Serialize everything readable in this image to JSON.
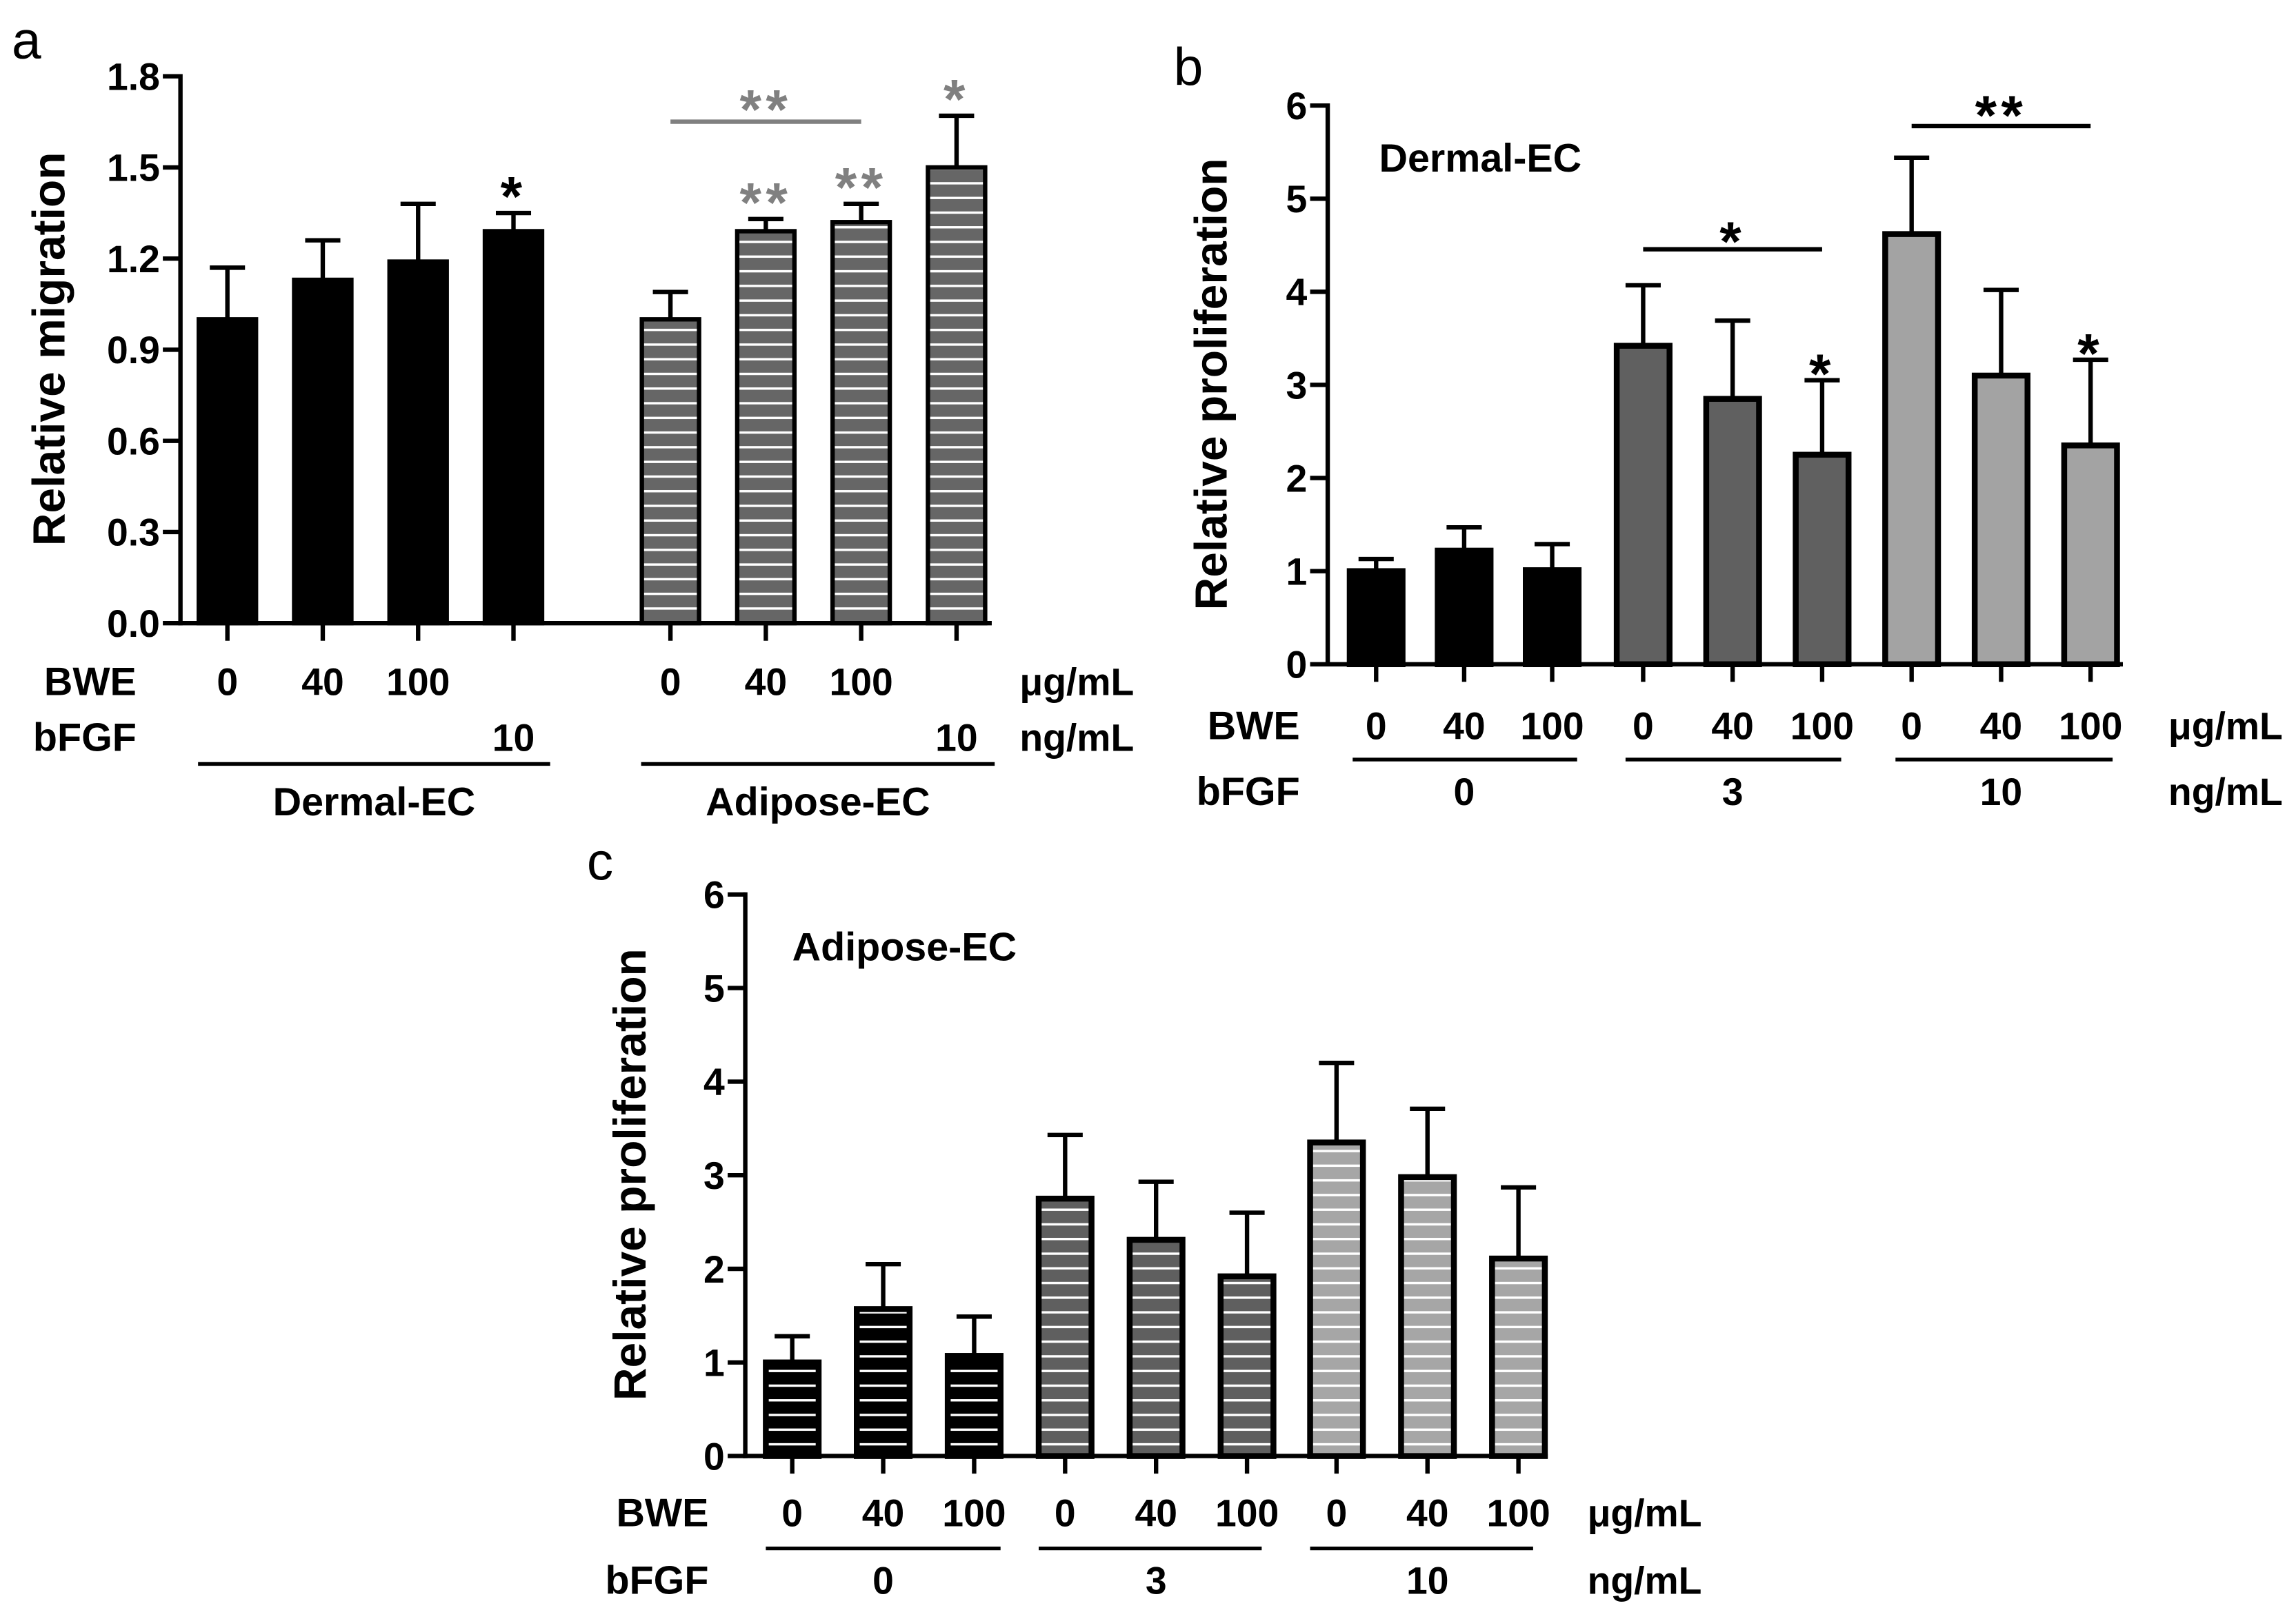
{
  "chart_data": [
    {
      "panel_label": "a",
      "type": "bar",
      "ylabel": "Relative migration",
      "ylim": [
        0,
        1.8
      ],
      "yticks": [
        "0.0",
        "0.3",
        "0.6",
        "0.9",
        "1.2",
        "1.5",
        "1.8"
      ],
      "rows": {
        "bwe_label": "BWE",
        "bwe_unit": "μg/mL",
        "bfgf_label": "bFGF",
        "bfgf_unit": "ng/mL"
      },
      "groups": [
        {
          "name": "Dermal-EC",
          "bfgf": "10",
          "fill": "#000000",
          "striped": false,
          "sig_color": "#000000",
          "bars": [
            {
              "bwe": "0",
              "value": 1.0,
              "error": 0.17
            },
            {
              "bwe": "40",
              "value": 1.13,
              "error": 0.13
            },
            {
              "bwe": "100",
              "value": 1.19,
              "error": 0.19
            },
            {
              "value": 1.29,
              "error": 0.06,
              "sig": "*"
            }
          ]
        },
        {
          "name": "Adipose-EC",
          "bfgf": "10",
          "fill": "#666666",
          "striped": true,
          "sig_color": "#808080",
          "bars": [
            {
              "bwe": "0",
              "value": 1.0,
              "error": 0.09
            },
            {
              "bwe": "40",
              "value": 1.29,
              "error": 0.04,
              "sig": "**"
            },
            {
              "bwe": "100",
              "value": 1.32,
              "error": 0.06,
              "sig": "**"
            },
            {
              "value": 1.5,
              "error": 0.17,
              "sig": "*"
            }
          ]
        }
      ],
      "brackets": [
        {
          "group": 1,
          "from": 0,
          "to": 2,
          "sig": "**",
          "color": "#808080"
        }
      ]
    },
    {
      "panel_label": "b",
      "type": "bar",
      "ylabel": "Relative proliferation",
      "inset_label": "Dermal-EC",
      "ylim": [
        0,
        6
      ],
      "yticks": [
        "0",
        "1",
        "2",
        "3",
        "4",
        "5",
        "6"
      ],
      "rows": {
        "bwe_label": "BWE",
        "bwe_unit": "μg/mL",
        "bfgf_label": "bFGF",
        "bfgf_unit": "ng/mL"
      },
      "groups": [
        {
          "bfgf": "0",
          "fill": "#000000",
          "striped": false,
          "sig_color": "#000000",
          "bars": [
            {
              "bwe": "0",
              "value": 1.0,
              "error": 0.13
            },
            {
              "bwe": "40",
              "value": 1.22,
              "error": 0.25
            },
            {
              "bwe": "100",
              "value": 1.01,
              "error": 0.28
            }
          ]
        },
        {
          "bfgf": "3",
          "fill": "#606060",
          "striped": false,
          "sig_color": "#000000",
          "bars": [
            {
              "bwe": "0",
              "value": 3.42,
              "error": 0.65
            },
            {
              "bwe": "40",
              "value": 2.85,
              "error": 0.84
            },
            {
              "bwe": "100",
              "value": 2.25,
              "error": 0.8,
              "sig": "*"
            }
          ]
        },
        {
          "bfgf": "10",
          "fill": "#a3a3a3",
          "striped": false,
          "sig_color": "#000000",
          "bars": [
            {
              "bwe": "0",
              "value": 4.62,
              "error": 0.82
            },
            {
              "bwe": "40",
              "value": 3.1,
              "error": 0.92
            },
            {
              "bwe": "100",
              "value": 2.35,
              "error": 0.92,
              "sig": "*"
            }
          ]
        }
      ],
      "brackets": [
        {
          "group": 1,
          "from": 0,
          "to": 2,
          "sig": "*",
          "color": "#000000"
        },
        {
          "group": 2,
          "from": 0,
          "to": 2,
          "sig": "**",
          "color": "#000000"
        }
      ]
    },
    {
      "panel_label": "c",
      "type": "bar",
      "ylabel": "Relative proliferation",
      "inset_label": "Adipose-EC",
      "ylim": [
        0,
        6
      ],
      "yticks": [
        "0",
        "1",
        "2",
        "3",
        "4",
        "5",
        "6"
      ],
      "rows": {
        "bwe_label": "BWE",
        "bwe_unit": "μg/mL",
        "bfgf_label": "bFGF",
        "bfgf_unit": "ng/mL"
      },
      "groups": [
        {
          "bfgf": "0",
          "fill": "#000000",
          "striped": true,
          "sig_color": "#000000",
          "bars": [
            {
              "bwe": "0",
              "value": 1.0,
              "error": 0.28
            },
            {
              "bwe": "40",
              "value": 1.57,
              "error": 0.48
            },
            {
              "bwe": "100",
              "value": 1.07,
              "error": 0.42
            }
          ]
        },
        {
          "bfgf": "3",
          "fill": "#5f5f5f",
          "striped": true,
          "sig_color": "#000000",
          "bars": [
            {
              "bwe": "0",
              "value": 2.75,
              "error": 0.68
            },
            {
              "bwe": "40",
              "value": 2.31,
              "error": 0.62
            },
            {
              "bwe": "100",
              "value": 1.92,
              "error": 0.68
            }
          ]
        },
        {
          "bfgf": "10",
          "fill": "#a6a6a6",
          "striped": true,
          "sig_color": "#000000",
          "bars": [
            {
              "bwe": "0",
              "value": 3.35,
              "error": 0.85
            },
            {
              "bwe": "40",
              "value": 2.98,
              "error": 0.73
            },
            {
              "bwe": "100",
              "value": 2.11,
              "error": 0.76
            }
          ]
        }
      ],
      "brackets": []
    }
  ]
}
